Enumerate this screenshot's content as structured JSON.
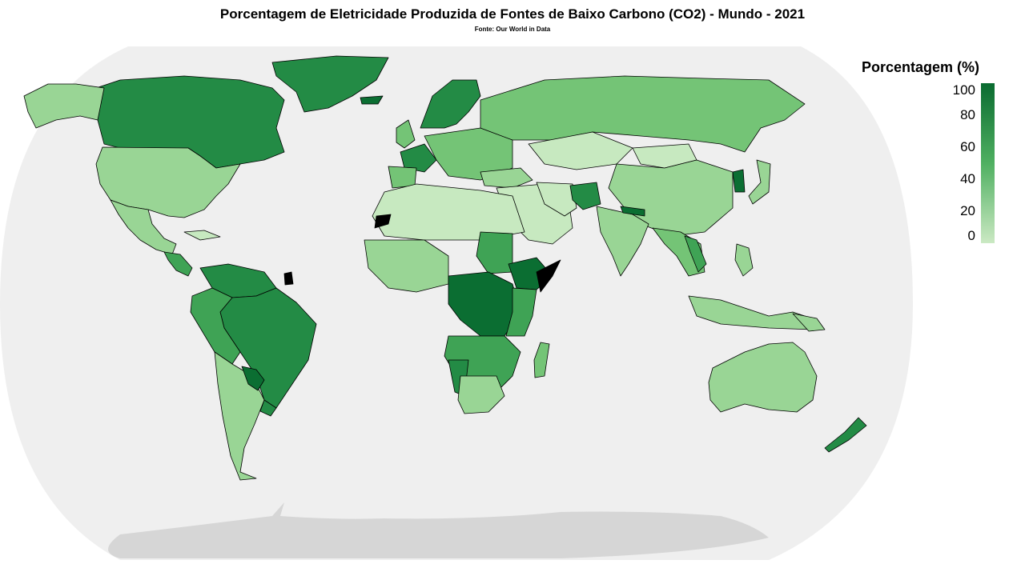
{
  "title": "Porcentagem de Eletricidade Produzida de Fontes de Baixo Carbono (CO2) - Mundo - 2021",
  "subtitle": "Fonte: Our World in Data",
  "legend": {
    "title": "Porcentagem (%)",
    "ticks": [
      "100",
      "80",
      "60",
      "40",
      "20",
      "0"
    ],
    "color_low": "#cbe9c3",
    "color_high": "#0a6b30"
  },
  "colors": {
    "ocean": "#efefef",
    "antarctica": "#d6d6d6",
    "no_data": "#000000",
    "shade_very_high": "#0b6e32",
    "shade_high": "#238b45",
    "shade_mid_high": "#3fa355",
    "shade_mid": "#74c476",
    "shade_mid_low": "#99d595",
    "shade_low": "#c7e9c0"
  }
}
